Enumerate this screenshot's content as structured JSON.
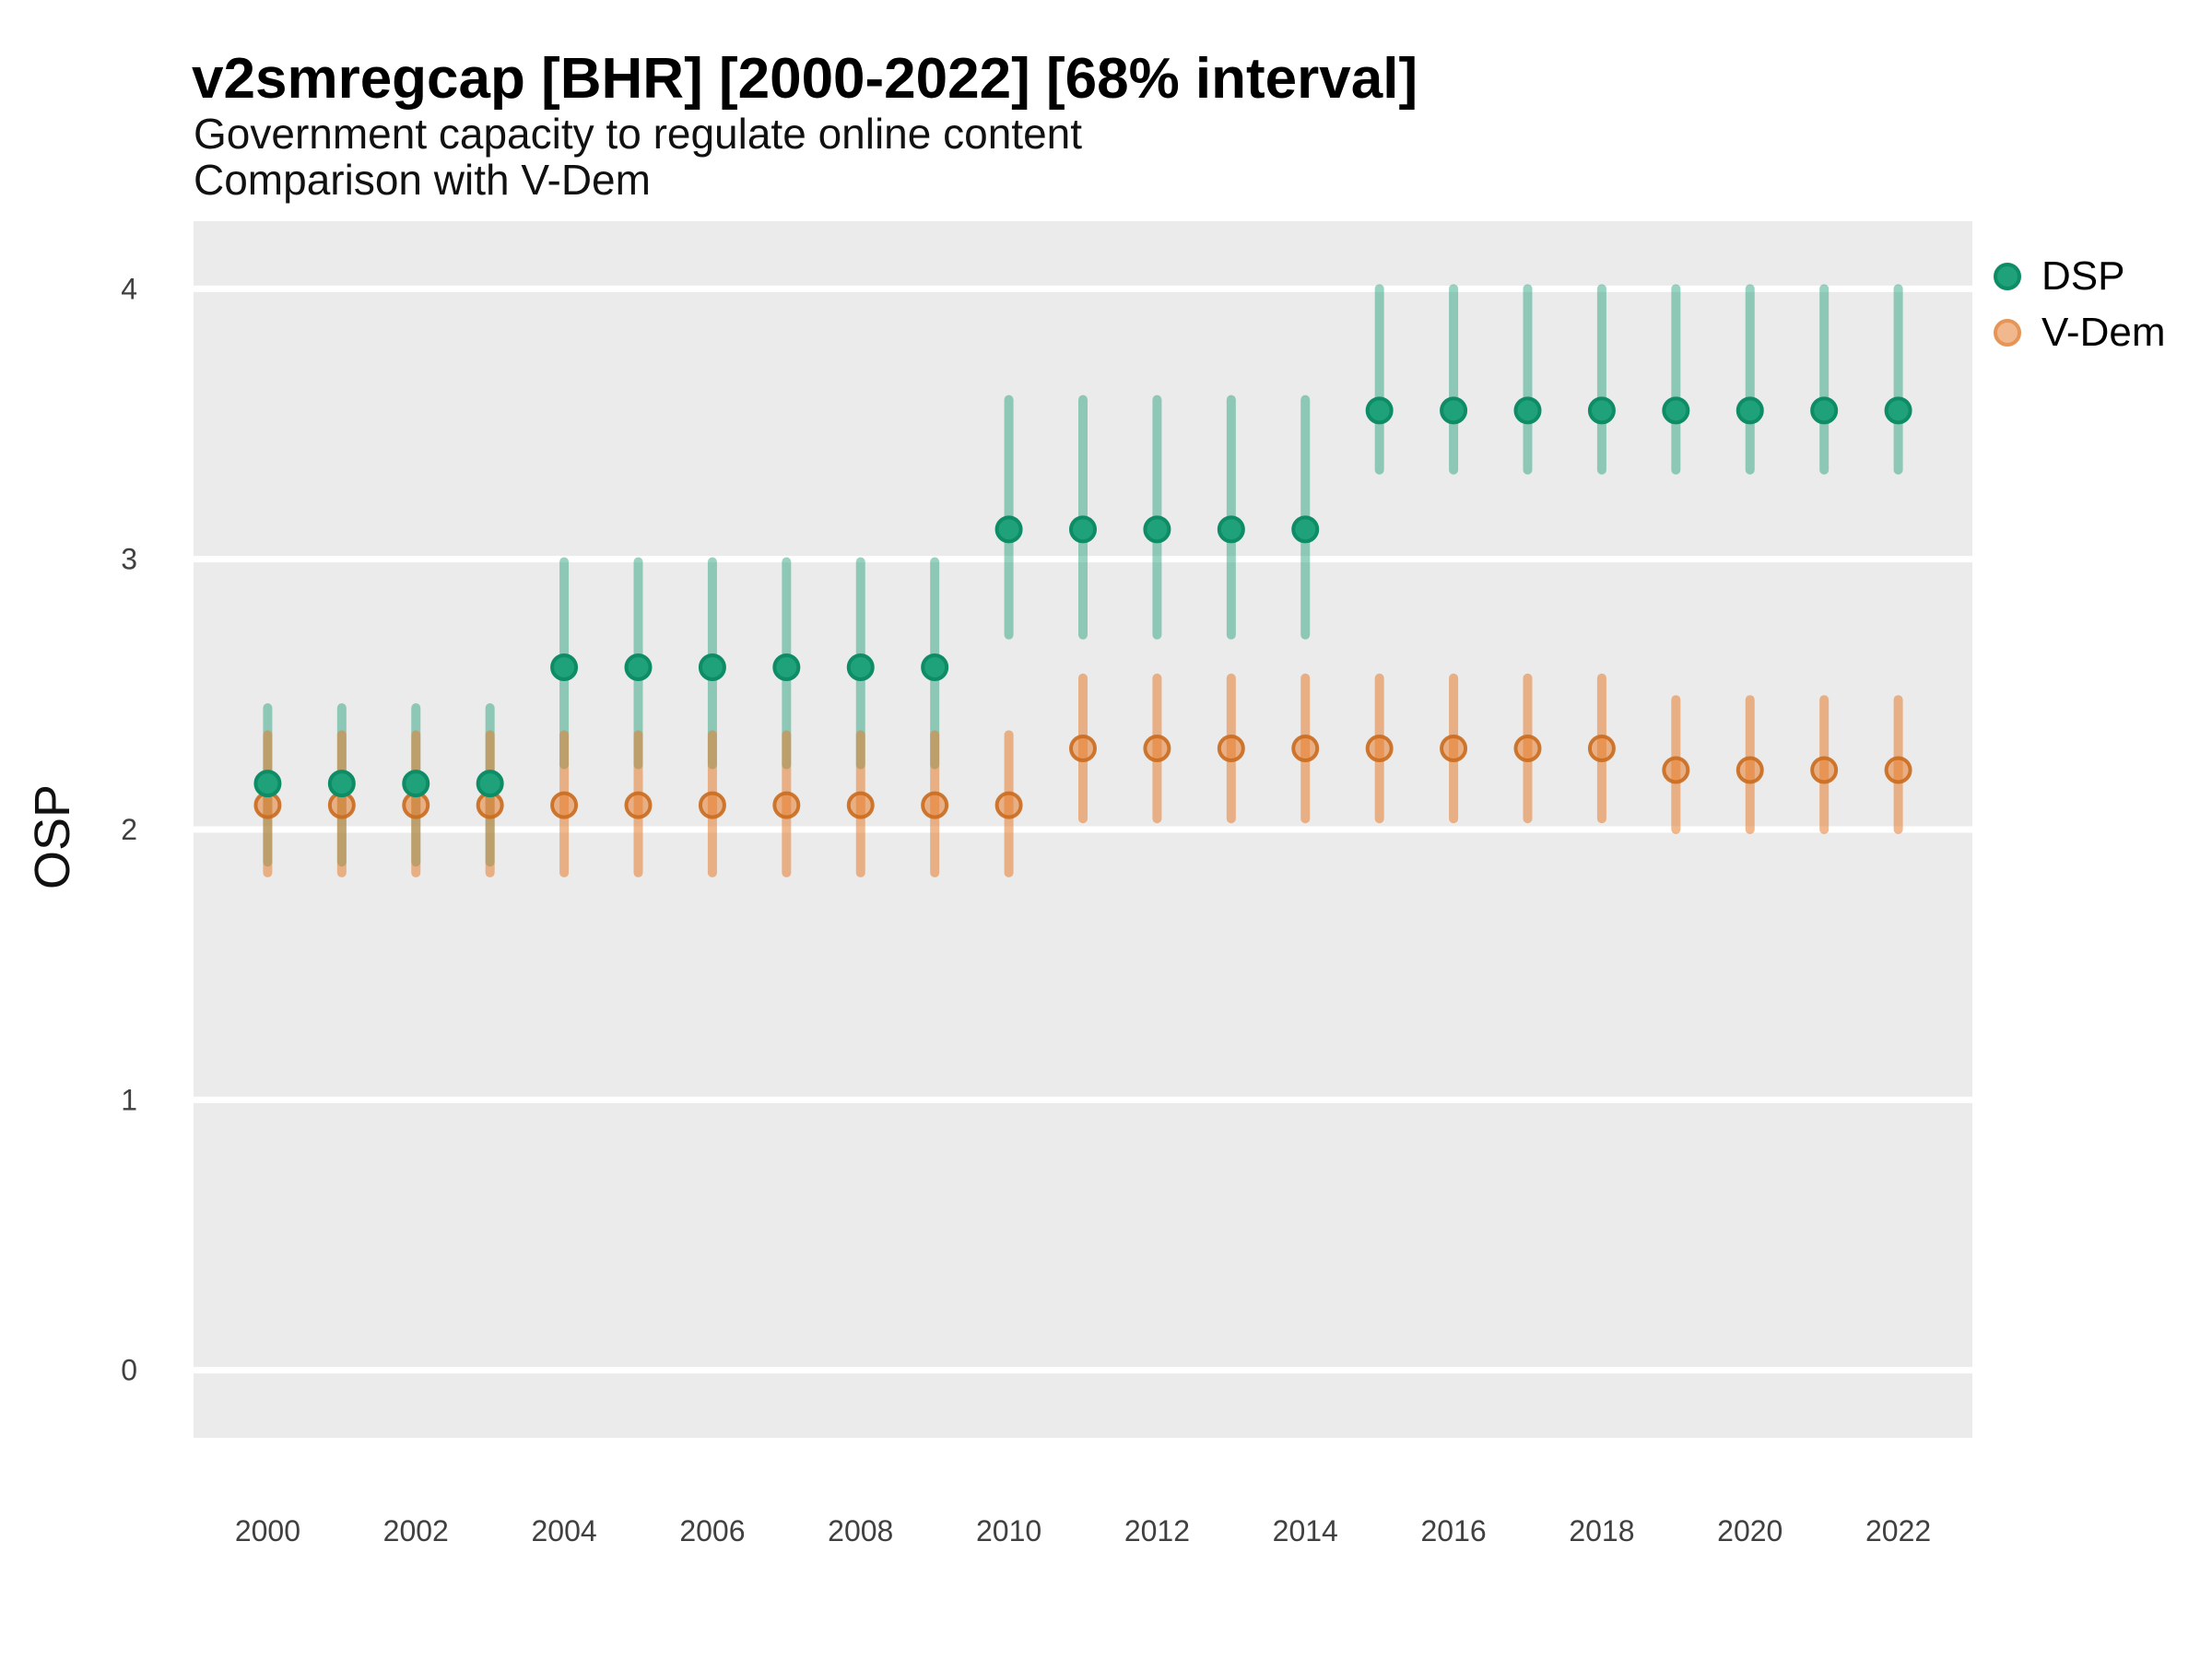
{
  "chart_data": {
    "type": "pointrange-scatter",
    "title": "v2smregcap [BHR] [2000-2022] [68% interval]",
    "subtitle": [
      "Government capacity to regulate online content",
      "Comparison with V-Dem"
    ],
    "ylabel": "OSP",
    "interval": "68% interval",
    "country": "BHR",
    "variable": "v2smregcap",
    "x": [
      2000,
      2001,
      2002,
      2003,
      2004,
      2005,
      2006,
      2007,
      2008,
      2009,
      2010,
      2011,
      2012,
      2013,
      2014,
      2015,
      2016,
      2017,
      2018,
      2019,
      2020,
      2021,
      2022
    ],
    "xticks": [
      2000,
      2002,
      2004,
      2006,
      2008,
      2010,
      2012,
      2014,
      2016,
      2018,
      2020,
      2022
    ],
    "yticks": [
      0,
      1,
      2,
      3,
      4
    ],
    "xlim": [
      1999,
      2023
    ],
    "ylim": [
      -0.25,
      4.25
    ],
    "grid": {
      "horizontal": true,
      "vertical": false
    },
    "legend_position": "right",
    "colors": {
      "panel_bg": "#EBEBEB",
      "grid": "#FFFFFF",
      "tick_label": "#404040",
      "text": "#000000"
    },
    "series": [
      {
        "name": "DSP",
        "point_fill": "#1FA179",
        "point_stroke": "#0E8C66",
        "bar_color": "rgba(27,158,119,0.45)",
        "legend_fill": "#1FA179",
        "legend_stroke": "#0E8C66",
        "values": [
          2.17,
          2.17,
          2.17,
          2.17,
          2.6,
          2.6,
          2.6,
          2.6,
          2.6,
          2.6,
          3.11,
          3.11,
          3.11,
          3.11,
          3.11,
          3.55,
          3.55,
          3.55,
          3.55,
          3.55,
          3.55,
          3.55,
          3.55
        ],
        "lower": [
          1.88,
          1.88,
          1.88,
          1.88,
          2.24,
          2.24,
          2.24,
          2.24,
          2.24,
          2.24,
          2.72,
          2.72,
          2.72,
          2.72,
          2.72,
          3.33,
          3.33,
          3.33,
          3.33,
          3.33,
          3.33,
          3.33,
          3.33
        ],
        "upper": [
          2.45,
          2.45,
          2.45,
          2.45,
          2.99,
          2.99,
          2.99,
          2.99,
          2.99,
          2.99,
          3.59,
          3.59,
          3.59,
          3.59,
          3.59,
          4.0,
          4.0,
          4.0,
          4.0,
          4.0,
          4.0,
          4.0,
          4.0
        ]
      },
      {
        "name": "V-Dem",
        "point_fill": "rgba(230,126,48,0.55)",
        "point_stroke": "rgba(202,107,30,0.9)",
        "bar_color": "rgba(230,126,48,0.55)",
        "legend_fill": "#F1B88D",
        "legend_stroke": "#E79556",
        "values": [
          2.09,
          2.09,
          2.09,
          2.09,
          2.09,
          2.09,
          2.09,
          2.09,
          2.09,
          2.09,
          2.09,
          2.3,
          2.3,
          2.3,
          2.3,
          2.3,
          2.3,
          2.3,
          2.3,
          2.22,
          2.22,
          2.22,
          2.22
        ],
        "lower": [
          1.84,
          1.84,
          1.84,
          1.84,
          1.84,
          1.84,
          1.84,
          1.84,
          1.84,
          1.84,
          1.84,
          2.04,
          2.04,
          2.04,
          2.04,
          2.04,
          2.04,
          2.04,
          2.04,
          2.0,
          2.0,
          2.0,
          2.0
        ],
        "upper": [
          2.35,
          2.35,
          2.35,
          2.35,
          2.35,
          2.35,
          2.35,
          2.35,
          2.35,
          2.35,
          2.35,
          2.56,
          2.56,
          2.56,
          2.56,
          2.56,
          2.56,
          2.56,
          2.56,
          2.48,
          2.48,
          2.48,
          2.48
        ]
      }
    ]
  }
}
